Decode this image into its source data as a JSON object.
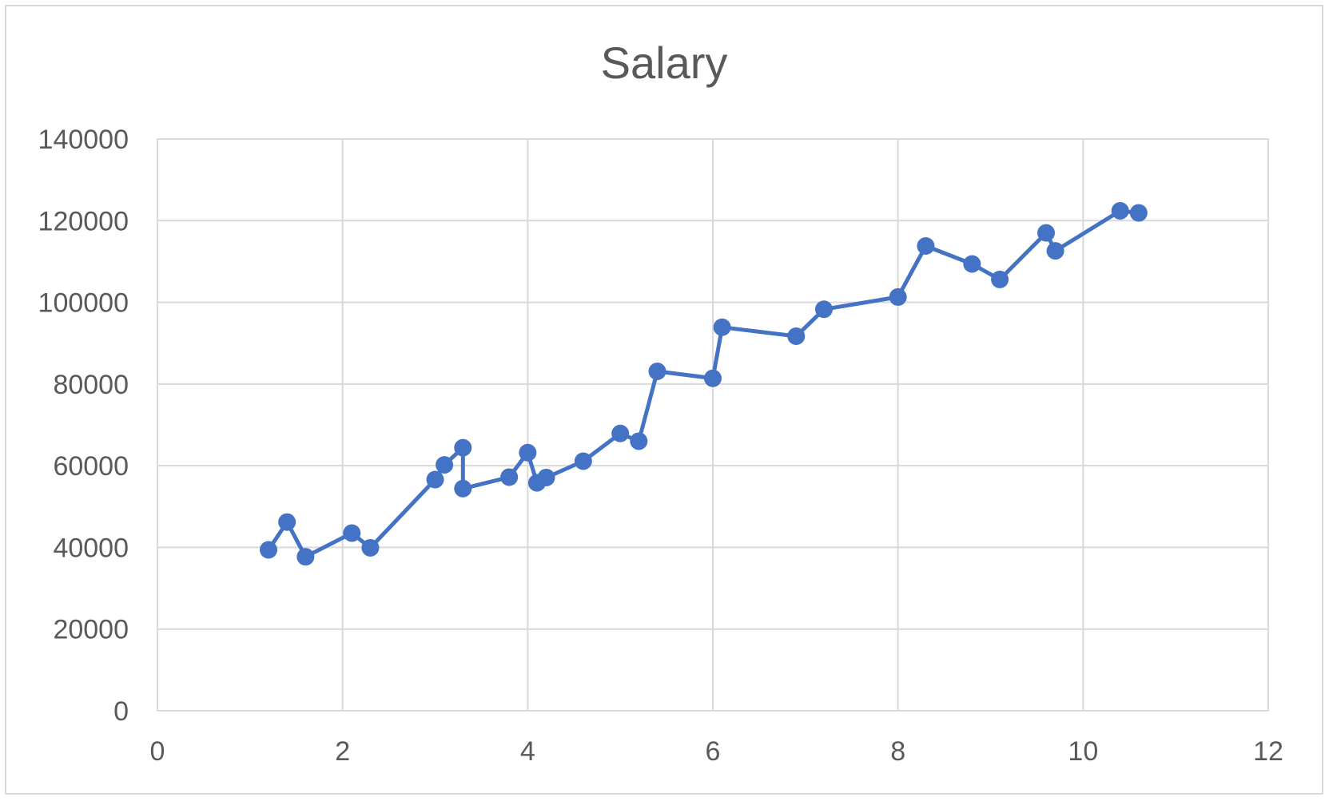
{
  "chart_data": {
    "type": "scatter",
    "title": "Salary",
    "xlabel": "",
    "ylabel": "",
    "xlim": [
      0,
      12
    ],
    "ylim": [
      0,
      140000
    ],
    "x_ticks": [
      "0",
      "2",
      "4",
      "6",
      "8",
      "10",
      "12"
    ],
    "y_ticks": [
      "0",
      "20000",
      "40000",
      "60000",
      "80000",
      "100000",
      "120000",
      "140000"
    ],
    "grid": true,
    "legend": "none",
    "series_color": "#4472C4",
    "series": [
      {
        "x": [
          1.2,
          1.4,
          1.6,
          2.1,
          2.3,
          3.0,
          3.1,
          3.3,
          3.3,
          3.8,
          4.0,
          4.1,
          4.2,
          4.6,
          5.0,
          5.2,
          5.4,
          6.0,
          6.1,
          6.9,
          7.2,
          8.0,
          8.3,
          8.8,
          9.1,
          9.6,
          9.7,
          10.4,
          10.6
        ],
        "y": [
          39400,
          46200,
          37700,
          43500,
          39900,
          56600,
          60200,
          64400,
          54400,
          57200,
          63200,
          55800,
          57100,
          61100,
          67900,
          66000,
          83100,
          81400,
          93900,
          91700,
          98300,
          101300,
          113800,
          109400,
          105600,
          117000,
          112600,
          122400,
          121900
        ]
      }
    ]
  }
}
